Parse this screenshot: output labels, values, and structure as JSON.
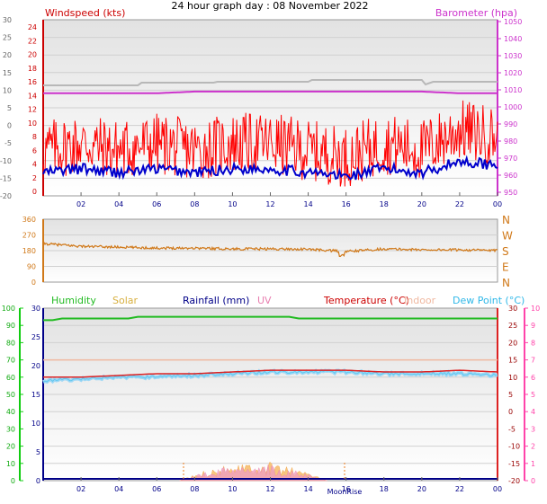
{
  "title": "24 hour graph day : 08 November 2022",
  "colors": {
    "wind_red": "#ff0000",
    "wind_blue": "#0000cc",
    "baro": "#cc33cc",
    "gray_line": "#b8b8b8",
    "dir": "#d07818",
    "humidity": "#22bb22",
    "solar": "#f0b040",
    "uv": "#e87fb0",
    "temp": "#dd2222",
    "indoor": "#f0b8a0",
    "dewpoint": "#60c8f0",
    "rain": "#000088",
    "axis_pink": "#ff44aa",
    "axis_green": "#11cc11",
    "axis_darkred": "#990000"
  },
  "panel1": {
    "left_title": "Windspeed (kts)",
    "right_title": "Barometer (hpa)",
    "left_ticks": [
      "30",
      "25",
      "20",
      "15",
      "10",
      "5",
      "0",
      "-5",
      "-10",
      "-15",
      "-20"
    ],
    "left_ticks_red": [
      "24",
      "22",
      "20",
      "18",
      "16",
      "14",
      "12",
      "10",
      "8",
      "6",
      "4",
      "2",
      "0"
    ],
    "right_ticks": [
      "1050",
      "1040",
      "1030",
      "1020",
      "1010",
      "1000",
      "990",
      "980",
      "970",
      "960",
      "950"
    ]
  },
  "panel2": {
    "left_ticks": [
      "360",
      "270",
      "180",
      "90",
      "0"
    ],
    "right_labels": [
      "N",
      "W",
      "S",
      "E",
      "N"
    ]
  },
  "panel3": {
    "legend": {
      "humidity": "Humidity",
      "solar": "Solar",
      "rainfall": "Rainfall (mm)",
      "uv": "UV",
      "temperature": "Temperature (°C)",
      "indoor": "Indoor",
      "dewpoint": "Dew Point (°C)"
    },
    "left_ticks_green": [
      "100",
      "90",
      "80",
      "70",
      "60",
      "50",
      "40",
      "30",
      "20",
      "10",
      "0"
    ],
    "left_ticks_blue": [
      "30",
      "25",
      "20",
      "15",
      "10",
      "5",
      "0"
    ],
    "right_ticks_red": [
      "30",
      "25",
      "20",
      "15",
      "10",
      "5",
      "0",
      "-5",
      "-10",
      "-15",
      "-20"
    ],
    "right_ticks_pink": [
      "10",
      "9",
      "8",
      "7",
      "6",
      "5",
      "4",
      "3",
      "2",
      "1",
      "0"
    ],
    "moon_label": "MoonRise"
  },
  "x_ticks": [
    "02",
    "04",
    "06",
    "08",
    "10",
    "12",
    "14",
    "16",
    "18",
    "20",
    "22",
    "00"
  ],
  "chart_data": [
    {
      "type": "line",
      "title": "Windspeed (kts) / Barometer (hpa)",
      "x_hours": [
        0,
        2,
        4,
        6,
        8,
        10,
        12,
        14,
        16,
        18,
        20,
        22,
        24
      ],
      "series": [
        {
          "name": "Windspeed (kts)",
          "values": [
            5,
            6,
            5,
            6,
            5,
            6,
            6,
            5,
            4,
            6,
            5,
            8,
            7
          ]
        },
        {
          "name": "Barometer (hpa)",
          "values": [
            1008,
            1008,
            1008,
            1008,
            1009,
            1009,
            1009,
            1009,
            1009,
            1009,
            1009,
            1008,
            1008
          ]
        }
      ],
      "ylim_left": [
        0,
        24
      ],
      "ylim_right": [
        950,
        1050
      ]
    },
    {
      "type": "line",
      "x_hours": [
        0,
        2,
        4,
        6,
        8,
        10,
        12,
        14,
        16,
        18,
        20,
        22,
        24
      ],
      "series": [
        {
          "values": [
            220,
            205,
            200,
            195,
            195,
            190,
            190,
            188,
            175,
            190,
            185,
            185,
            180
          ]
        }
      ],
      "ylim": [
        0,
        360
      ]
    },
    {
      "type": "line",
      "x_hours": [
        0,
        2,
        4,
        6,
        8,
        10,
        12,
        14,
        16,
        18,
        20,
        22,
        24
      ],
      "series": [
        {
          "name": "Humidity",
          "values": [
            93,
            94,
            94,
            95,
            95,
            95,
            95,
            94,
            94,
            94,
            94,
            94,
            94
          ]
        },
        {
          "name": "Temperature (°C)",
          "values": [
            10,
            10,
            10.5,
            11,
            11,
            11.5,
            12,
            12,
            12,
            11.5,
            11.5,
            12,
            11.5
          ]
        },
        {
          "name": "Dew Point (°C)",
          "values": [
            9,
            9.5,
            10,
            10,
            10.5,
            11,
            11.5,
            11.5,
            11.5,
            11,
            11,
            11,
            10.5
          ]
        },
        {
          "name": "Indoor",
          "values": [
            15,
            15,
            15,
            15,
            15,
            15,
            15,
            15,
            15,
            15,
            15,
            15,
            15
          ]
        }
      ],
      "ylim_left_humidity": [
        0,
        100
      ],
      "ylim_right_temperature": [
        -20,
        30
      ],
      "ylim_right_uv": [
        0,
        10
      ]
    }
  ]
}
